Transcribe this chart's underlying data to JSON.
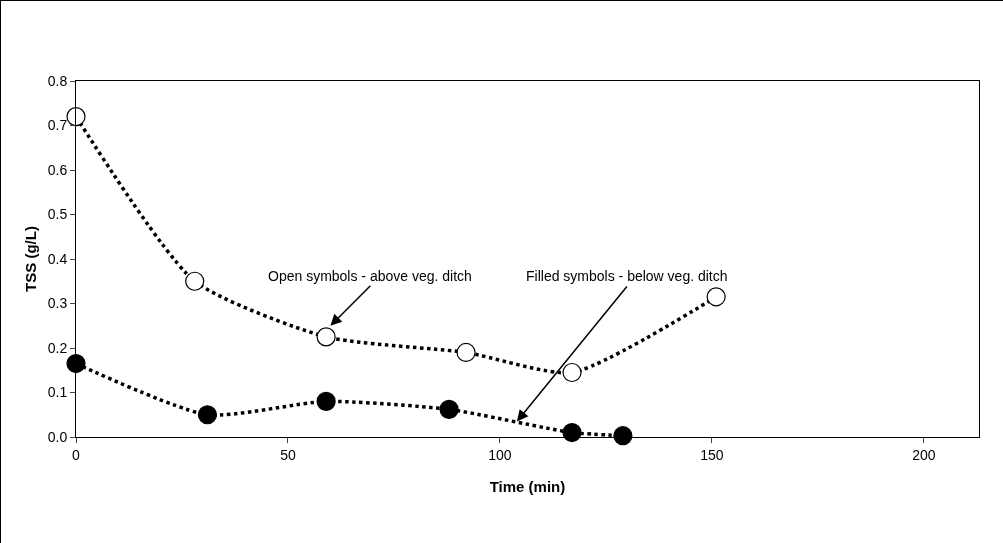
{
  "chart_data": {
    "type": "line",
    "xlabel": "Time (min)",
    "ylabel": "TSS (g/L)",
    "xlim": [
      0,
      213
    ],
    "xticks": [
      0,
      50,
      100,
      150,
      200
    ],
    "ylim": [
      0,
      0.8
    ],
    "yticks": [
      {
        "value": 0,
        "label": "0.0"
      },
      0.1,
      0.2,
      0.3,
      0.4,
      0.5,
      0.6,
      0.7,
      0.8
    ],
    "grid": false,
    "marker": "circle",
    "line_style": "dotted",
    "series": [
      {
        "color": "#ffffff",
        "x": [
          0,
          28,
          59,
          92,
          117,
          151
        ],
        "values": [
          0.72,
          0.35,
          0.225,
          0.19,
          0.145,
          0.315
        ]
      },
      {
        "color": "#000000",
        "x": [
          0,
          31,
          59,
          88,
          117,
          129
        ],
        "values": [
          0.165,
          0.05,
          0.08,
          0.062,
          0.01,
          0.003
        ]
      }
    ],
    "annotations": [
      {
        "text": "Open symbols - above veg. ditch",
        "x": 60,
        "y": 0.25
      },
      {
        "text": "Filled symbols - below veg. ditch",
        "x": 104,
        "y": 0.035
      }
    ]
  }
}
